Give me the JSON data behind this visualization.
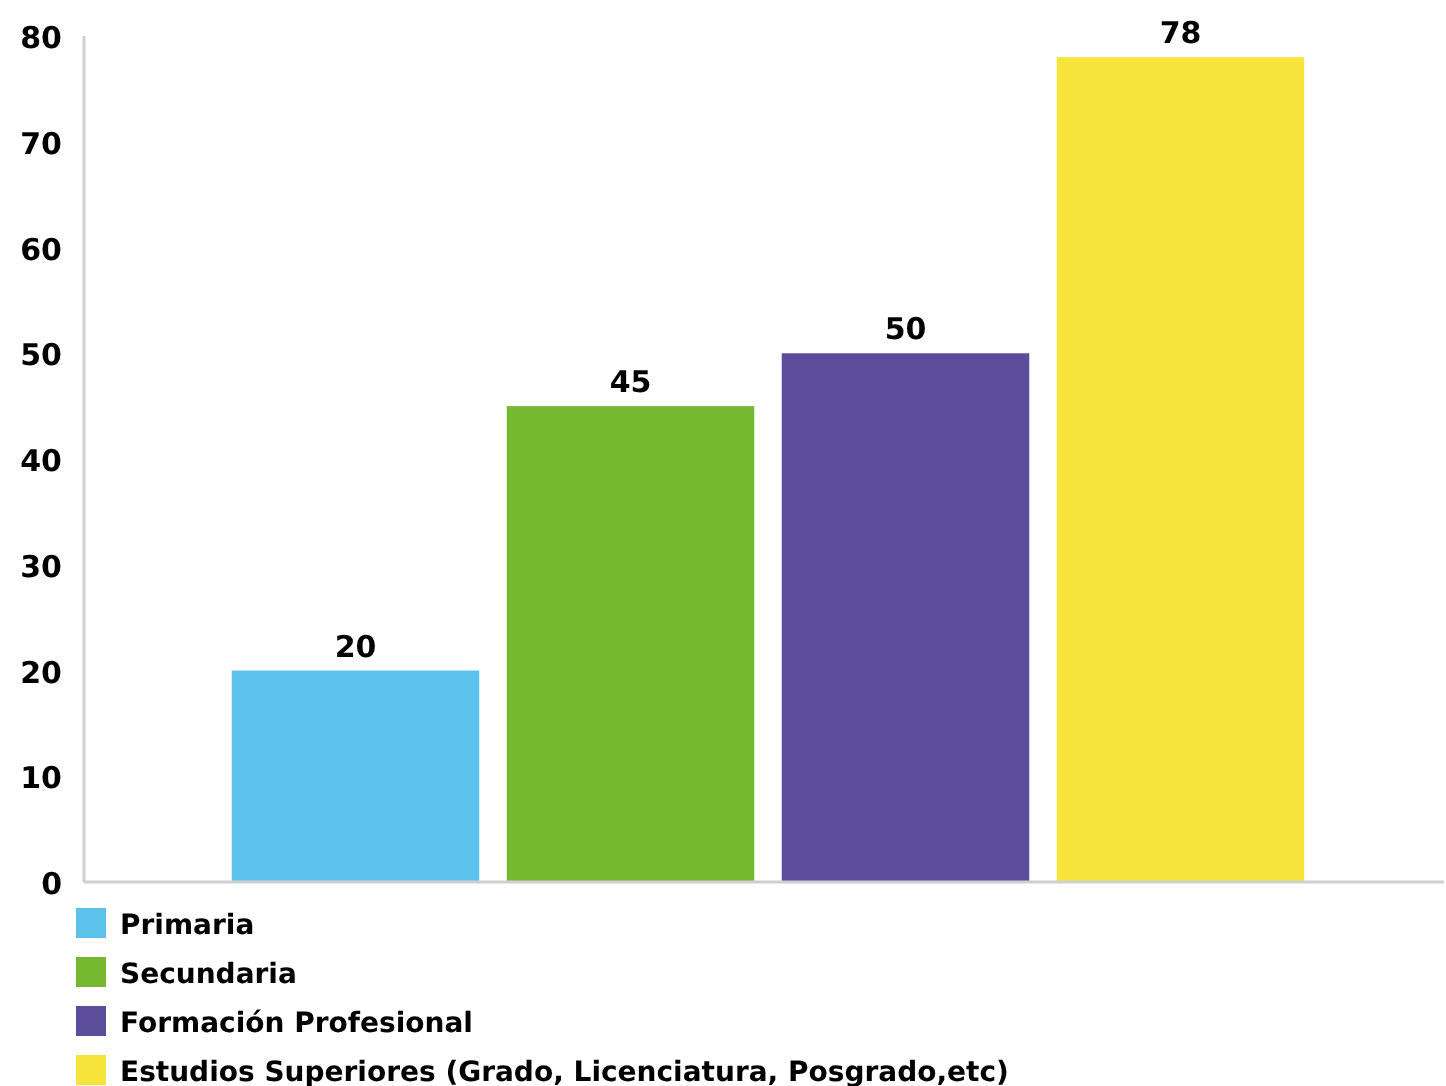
{
  "chart_data": {
    "type": "bar",
    "categories": [
      null,
      null,
      null,
      null
    ],
    "series": [
      {
        "name": "Primaria",
        "color": "#5bc2ec",
        "values": [
          20,
          null,
          null,
          null
        ]
      },
      {
        "name": "Secundaria",
        "color": "#76b82f",
        "values": [
          null,
          45,
          null,
          null
        ]
      },
      {
        "name": "Formación Profesional",
        "color": "#5b4d9a",
        "values": [
          null,
          null,
          50,
          null
        ]
      },
      {
        "name": "Estudios Superiores (Grado, Licenciatura, Posgrado,etc)",
        "color": "#f7e43a",
        "values": [
          null,
          null,
          null,
          78
        ]
      }
    ],
    "ylim": [
      0,
      80
    ],
    "yticks": [
      0,
      10,
      20,
      30,
      40,
      50,
      60,
      70,
      80
    ],
    "data_labels": true,
    "legend": "bottom",
    "tick_labels": "y",
    "grid": false
  }
}
